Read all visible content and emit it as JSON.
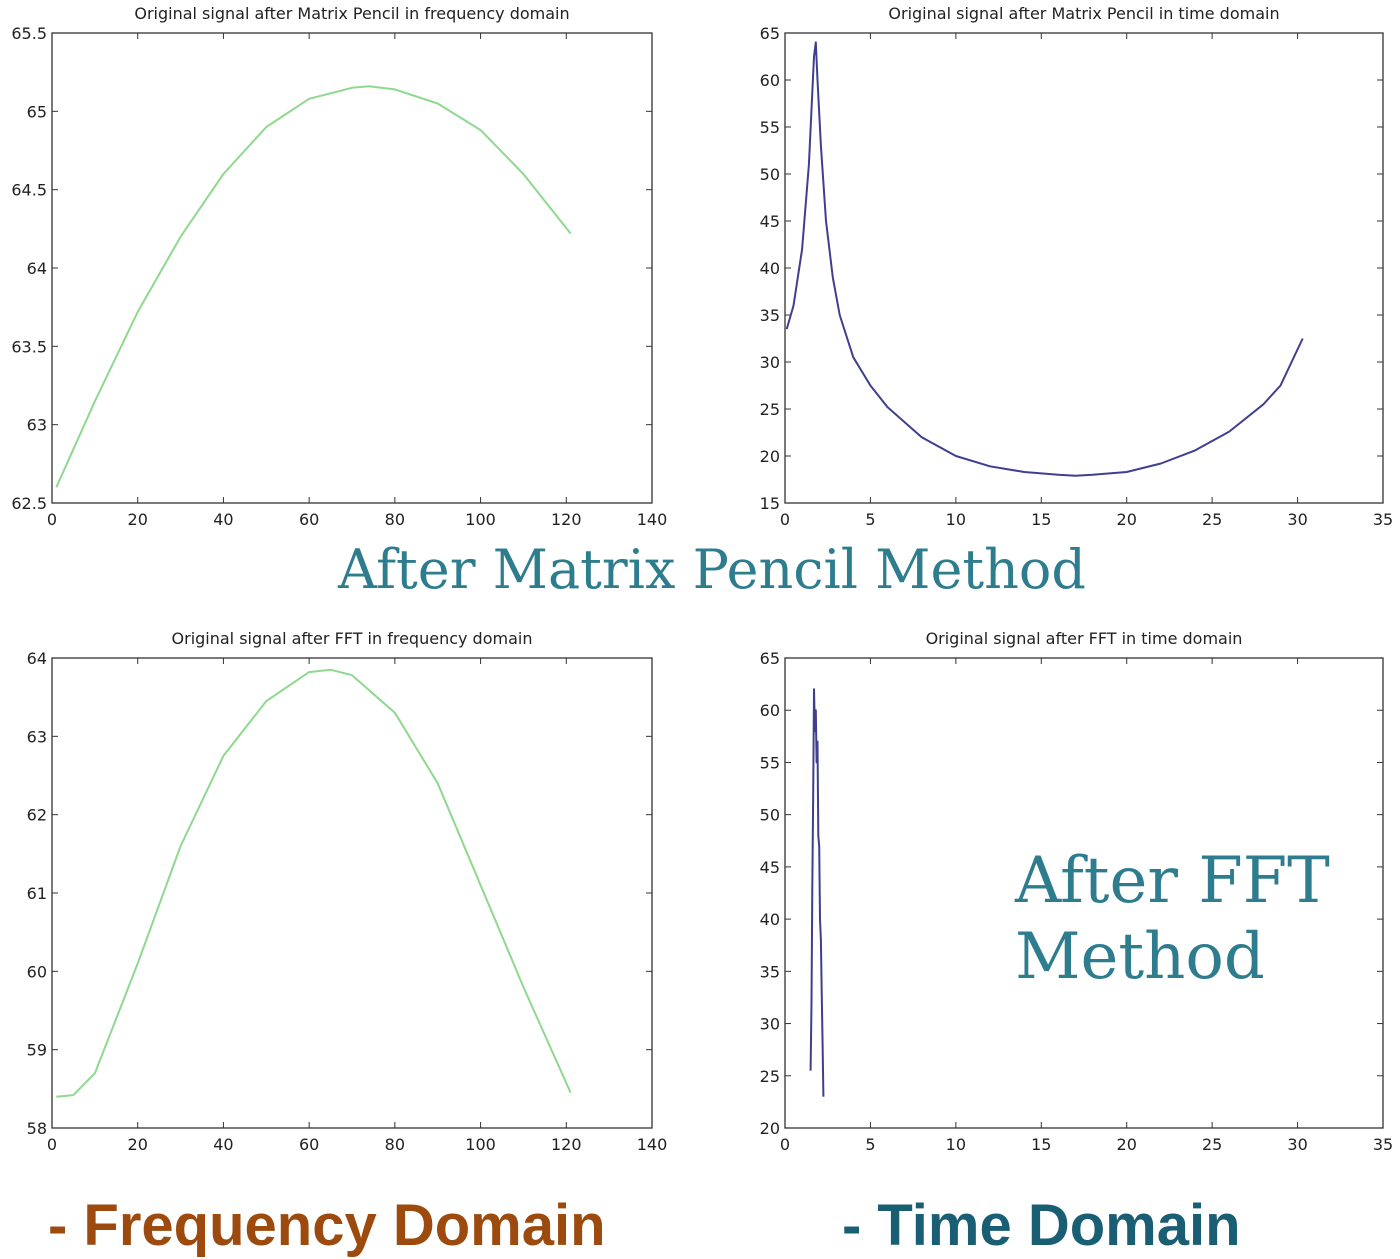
{
  "colors": {
    "green_line": "#8fd88f",
    "blue_line": "#3f3f8f",
    "caption_teal": "#2e7d8f",
    "caption_orange": "#9c4a0e",
    "caption_dark_teal": "#1a5e73"
  },
  "captions": {
    "matrix_pencil": "After Matrix Pencil Method",
    "fft_line1": "After FFT",
    "fft_line2": "Method",
    "frequency": "- Frequency Domain",
    "time": "- Time Domain"
  },
  "chart_data": [
    {
      "id": "mp-freq",
      "type": "line",
      "title": "Original signal after Matrix Pencil in frequency domain",
      "xlim": [
        0,
        140
      ],
      "ylim": [
        62.5,
        65.5
      ],
      "xticks": [
        "0",
        "20",
        "40",
        "60",
        "80",
        "100",
        "120",
        "140"
      ],
      "yticks": [
        "62.5",
        "63",
        "63.5",
        "64",
        "64.5",
        "65",
        "65.5"
      ],
      "series": [
        {
          "color": "#8fd88f",
          "x": [
            1,
            10,
            20,
            30,
            40,
            50,
            60,
            70,
            74,
            80,
            90,
            100,
            110,
            121
          ],
          "y": [
            62.6,
            63.15,
            63.72,
            64.2,
            64.6,
            64.9,
            65.08,
            65.15,
            65.16,
            65.14,
            65.05,
            64.88,
            64.6,
            64.22
          ]
        }
      ]
    },
    {
      "id": "mp-time",
      "type": "line",
      "title": "Original signal after Matrix Pencil in time domain",
      "xlim": [
        0,
        35
      ],
      "ylim": [
        15,
        65
      ],
      "xticks": [
        "0",
        "5",
        "10",
        "15",
        "20",
        "25",
        "30",
        "35"
      ],
      "yticks": [
        "15",
        "20",
        "25",
        "30",
        "35",
        "40",
        "45",
        "50",
        "55",
        "60",
        "65"
      ],
      "series": [
        {
          "color": "#3f3f8f",
          "x": [
            0.1,
            0.5,
            1.0,
            1.4,
            1.7,
            1.8,
            1.9,
            2.1,
            2.4,
            2.8,
            3.2,
            4,
            5,
            6,
            8,
            10,
            12,
            14,
            16,
            17,
            18,
            20,
            22,
            24,
            26,
            28,
            29,
            30.3
          ],
          "y": [
            33.5,
            36,
            42,
            51,
            62.5,
            64,
            60,
            53,
            45,
            39,
            35,
            30.5,
            27.5,
            25.2,
            22,
            20,
            18.9,
            18.3,
            18,
            17.9,
            18,
            18.3,
            19.2,
            20.6,
            22.6,
            25.5,
            27.5,
            32.5
          ]
        }
      ]
    },
    {
      "id": "fft-freq",
      "type": "line",
      "title": "Original signal after FFT in frequency domain",
      "xlim": [
        0,
        140
      ],
      "ylim": [
        58,
        64
      ],
      "xticks": [
        "0",
        "20",
        "40",
        "60",
        "80",
        "100",
        "120",
        "140"
      ],
      "yticks": [
        "58",
        "59",
        "60",
        "61",
        "62",
        "63",
        "64"
      ],
      "series": [
        {
          "color": "#8fd88f",
          "x": [
            1,
            5,
            10,
            20,
            30,
            40,
            50,
            60,
            65,
            70,
            80,
            90,
            100,
            110,
            121
          ],
          "y": [
            58.4,
            58.42,
            58.7,
            60.1,
            61.6,
            62.75,
            63.45,
            63.82,
            63.85,
            63.78,
            63.3,
            62.4,
            61.1,
            59.8,
            58.45
          ]
        }
      ]
    },
    {
      "id": "fft-time",
      "type": "line",
      "title": "Original signal after FFT in time domain",
      "xlim": [
        0,
        35
      ],
      "ylim": [
        20,
        65
      ],
      "xticks": [
        "0",
        "5",
        "10",
        "15",
        "20",
        "25",
        "30",
        "35"
      ],
      "yticks": [
        "20",
        "25",
        "30",
        "35",
        "40",
        "45",
        "50",
        "55",
        "60",
        "65"
      ],
      "series": [
        {
          "color": "#3f3f8f",
          "x": [
            1.5,
            1.55,
            1.6,
            1.65,
            1.7,
            1.75,
            1.8,
            1.85,
            1.9,
            1.95,
            2.0,
            2.05,
            2.1,
            2.15,
            2.2,
            2.25
          ],
          "y": [
            25.5,
            32,
            43,
            52,
            62,
            58,
            60,
            55,
            57,
            48,
            47,
            40,
            38,
            33,
            28,
            23
          ]
        }
      ]
    }
  ]
}
